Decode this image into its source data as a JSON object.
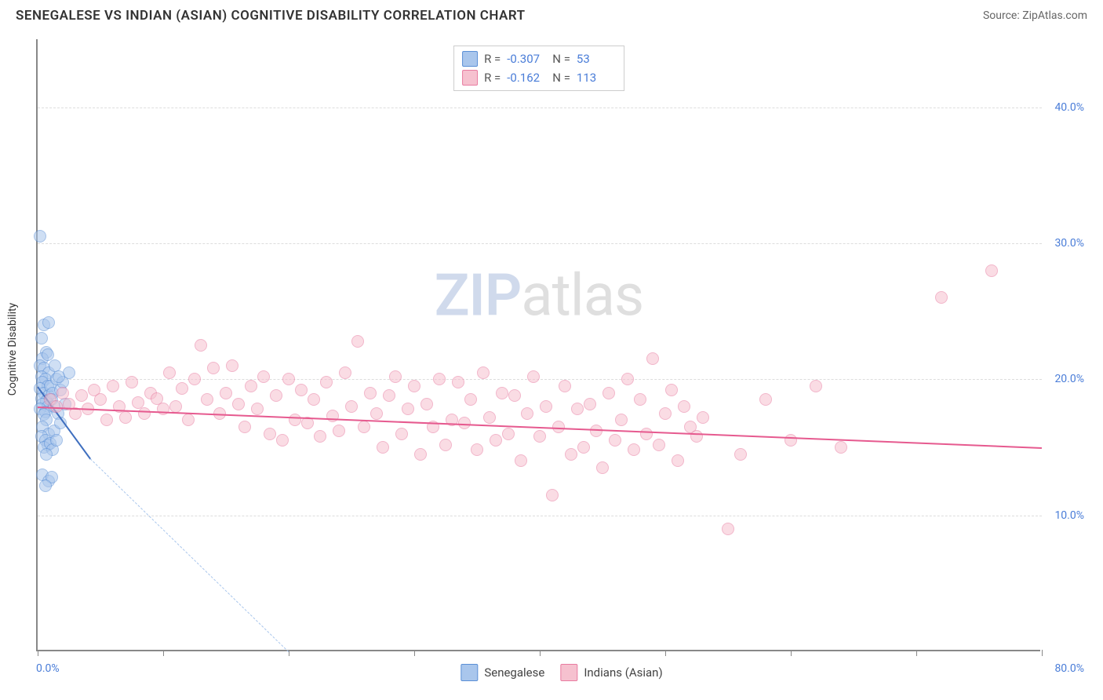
{
  "header": {
    "title": "SENEGALESE VS INDIAN (ASIAN) COGNITIVE DISABILITY CORRELATION CHART",
    "source": "Source: ZipAtlas.com"
  },
  "watermark": {
    "part1": "ZIP",
    "part2": "atlas"
  },
  "chart": {
    "type": "scatter",
    "y_axis_title": "Cognitive Disability",
    "background_color": "#ffffff",
    "grid_color": "#dddddd",
    "axis_color": "#888888",
    "label_color": "#4a7dd8",
    "label_fontsize": 14,
    "xlim": [
      0,
      80
    ],
    "ylim": [
      0,
      45
    ],
    "x_ticks": [
      0,
      10,
      20,
      30,
      40,
      50,
      60,
      70,
      80
    ],
    "x_tick_labels": {
      "0": "0.0%",
      "80": "80.0%"
    },
    "y_gridlines": [
      10,
      20,
      30,
      40
    ],
    "y_tick_labels": {
      "10": "10.0%",
      "20": "20.0%",
      "30": "30.0%",
      "40": "40.0%"
    },
    "marker_radius": 8,
    "marker_opacity": 0.55,
    "series": [
      {
        "name": "Senegalese",
        "color_fill": "#a9c6ec",
        "color_stroke": "#5a8fd6",
        "R": "-0.307",
        "N": "53",
        "trend": {
          "x1": 0,
          "y1": 19.5,
          "x2": 4.2,
          "y2": 14.2,
          "dash": false,
          "color": "#3f6fbf",
          "width": 2
        },
        "trend_ext": {
          "x1": 4.2,
          "y1": 14.2,
          "x2": 20,
          "y2": 0,
          "dash": true,
          "color": "#a9c6ec",
          "width": 1
        },
        "points": [
          [
            0.2,
            30.5
          ],
          [
            0.5,
            24.0
          ],
          [
            0.9,
            24.2
          ],
          [
            0.3,
            23.0
          ],
          [
            0.7,
            22.0
          ],
          [
            0.4,
            21.5
          ],
          [
            0.8,
            21.8
          ],
          [
            0.2,
            21.0
          ],
          [
            0.5,
            20.8
          ],
          [
            0.9,
            20.5
          ],
          [
            0.3,
            20.2
          ],
          [
            0.6,
            20.0
          ],
          [
            0.4,
            19.8
          ],
          [
            0.8,
            19.5
          ],
          [
            0.2,
            19.3
          ],
          [
            0.5,
            19.0
          ],
          [
            0.9,
            18.8
          ],
          [
            0.3,
            18.6
          ],
          [
            0.7,
            18.4
          ],
          [
            0.4,
            18.2
          ],
          [
            0.8,
            18.0
          ],
          [
            0.2,
            17.8
          ],
          [
            0.6,
            17.6
          ],
          [
            0.5,
            17.4
          ],
          [
            1.0,
            19.5
          ],
          [
            1.2,
            19.0
          ],
          [
            1.5,
            20.0
          ],
          [
            1.1,
            18.5
          ],
          [
            1.8,
            19.2
          ],
          [
            1.3,
            18.0
          ],
          [
            1.6,
            17.5
          ],
          [
            2.0,
            19.8
          ],
          [
            2.2,
            18.2
          ],
          [
            2.5,
            20.5
          ],
          [
            1.4,
            21.0
          ],
          [
            1.7,
            20.2
          ],
          [
            0.7,
            17.0
          ],
          [
            0.4,
            16.5
          ],
          [
            0.9,
            16.0
          ],
          [
            0.3,
            15.8
          ],
          [
            0.6,
            15.5
          ],
          [
            0.8,
            15.2
          ],
          [
            0.5,
            15.0
          ],
          [
            1.0,
            15.3
          ],
          [
            1.2,
            14.8
          ],
          [
            0.7,
            14.5
          ],
          [
            0.4,
            13.0
          ],
          [
            0.9,
            12.5
          ],
          [
            1.1,
            12.8
          ],
          [
            0.6,
            12.2
          ],
          [
            1.3,
            16.2
          ],
          [
            1.5,
            15.5
          ],
          [
            1.8,
            16.8
          ]
        ]
      },
      {
        "name": "Indians (Asian)",
        "color_fill": "#f6c1cf",
        "color_stroke": "#e87ba0",
        "R": "-0.162",
        "N": "113",
        "trend": {
          "x1": 0,
          "y1": 18.0,
          "x2": 80,
          "y2": 15.0,
          "dash": false,
          "color": "#e65a8f",
          "width": 2
        },
        "points": [
          [
            1.0,
            18.5
          ],
          [
            1.5,
            18.0
          ],
          [
            2.0,
            19.0
          ],
          [
            2.5,
            18.2
          ],
          [
            3.0,
            17.5
          ],
          [
            3.5,
            18.8
          ],
          [
            4.0,
            17.8
          ],
          [
            4.5,
            19.2
          ],
          [
            5.0,
            18.5
          ],
          [
            5.5,
            17.0
          ],
          [
            6.0,
            19.5
          ],
          [
            6.5,
            18.0
          ],
          [
            7.0,
            17.2
          ],
          [
            7.5,
            19.8
          ],
          [
            8.0,
            18.3
          ],
          [
            8.5,
            17.5
          ],
          [
            9.0,
            19.0
          ],
          [
            9.5,
            18.6
          ],
          [
            10.0,
            17.8
          ],
          [
            10.5,
            20.5
          ],
          [
            11.0,
            18.0
          ],
          [
            11.5,
            19.3
          ],
          [
            12.0,
            17.0
          ],
          [
            12.5,
            20.0
          ],
          [
            13.0,
            22.5
          ],
          [
            13.5,
            18.5
          ],
          [
            14.0,
            20.8
          ],
          [
            14.5,
            17.5
          ],
          [
            15.0,
            19.0
          ],
          [
            15.5,
            21.0
          ],
          [
            16.0,
            18.2
          ],
          [
            16.5,
            16.5
          ],
          [
            17.0,
            19.5
          ],
          [
            17.5,
            17.8
          ],
          [
            18.0,
            20.2
          ],
          [
            18.5,
            16.0
          ],
          [
            19.0,
            18.8
          ],
          [
            19.5,
            15.5
          ],
          [
            20.0,
            20.0
          ],
          [
            20.5,
            17.0
          ],
          [
            21.0,
            19.2
          ],
          [
            21.5,
            16.8
          ],
          [
            22.0,
            18.5
          ],
          [
            22.5,
            15.8
          ],
          [
            23.0,
            19.8
          ],
          [
            23.5,
            17.3
          ],
          [
            24.0,
            16.2
          ],
          [
            24.5,
            20.5
          ],
          [
            25.0,
            18.0
          ],
          [
            25.5,
            22.8
          ],
          [
            26.0,
            16.5
          ],
          [
            26.5,
            19.0
          ],
          [
            27.0,
            17.5
          ],
          [
            27.5,
            15.0
          ],
          [
            28.0,
            18.8
          ],
          [
            28.5,
            20.2
          ],
          [
            29.0,
            16.0
          ],
          [
            29.5,
            17.8
          ],
          [
            30.0,
            19.5
          ],
          [
            30.5,
            14.5
          ],
          [
            31.0,
            18.2
          ],
          [
            31.5,
            16.5
          ],
          [
            32.0,
            20.0
          ],
          [
            32.5,
            15.2
          ],
          [
            33.0,
            17.0
          ],
          [
            33.5,
            19.8
          ],
          [
            34.0,
            16.8
          ],
          [
            34.5,
            18.5
          ],
          [
            35.0,
            14.8
          ],
          [
            35.5,
            20.5
          ],
          [
            36.0,
            17.2
          ],
          [
            36.5,
            15.5
          ],
          [
            37.0,
            19.0
          ],
          [
            37.5,
            16.0
          ],
          [
            38.0,
            18.8
          ],
          [
            38.5,
            14.0
          ],
          [
            39.0,
            17.5
          ],
          [
            39.5,
            20.2
          ],
          [
            40.0,
            15.8
          ],
          [
            40.5,
            18.0
          ],
          [
            41.0,
            11.5
          ],
          [
            41.5,
            16.5
          ],
          [
            42.0,
            19.5
          ],
          [
            42.5,
            14.5
          ],
          [
            43.0,
            17.8
          ],
          [
            43.5,
            15.0
          ],
          [
            44.0,
            18.2
          ],
          [
            44.5,
            16.2
          ],
          [
            45.0,
            13.5
          ],
          [
            45.5,
            19.0
          ],
          [
            46.0,
            15.5
          ],
          [
            46.5,
            17.0
          ],
          [
            47.0,
            20.0
          ],
          [
            47.5,
            14.8
          ],
          [
            48.0,
            18.5
          ],
          [
            48.5,
            16.0
          ],
          [
            49.0,
            21.5
          ],
          [
            49.5,
            15.2
          ],
          [
            50.0,
            17.5
          ],
          [
            50.5,
            19.2
          ],
          [
            51.0,
            14.0
          ],
          [
            51.5,
            18.0
          ],
          [
            52.0,
            16.5
          ],
          [
            52.5,
            15.8
          ],
          [
            53.0,
            17.2
          ],
          [
            55.0,
            9.0
          ],
          [
            56.0,
            14.5
          ],
          [
            58.0,
            18.5
          ],
          [
            60.0,
            15.5
          ],
          [
            62.0,
            19.5
          ],
          [
            64.0,
            15.0
          ],
          [
            72.0,
            26.0
          ],
          [
            76.0,
            28.0
          ]
        ]
      }
    ],
    "bottom_legend": [
      {
        "label": "Senegalese",
        "fill": "#a9c6ec",
        "stroke": "#5a8fd6"
      },
      {
        "label": "Indians (Asian)",
        "fill": "#f6c1cf",
        "stroke": "#e87ba0"
      }
    ]
  }
}
